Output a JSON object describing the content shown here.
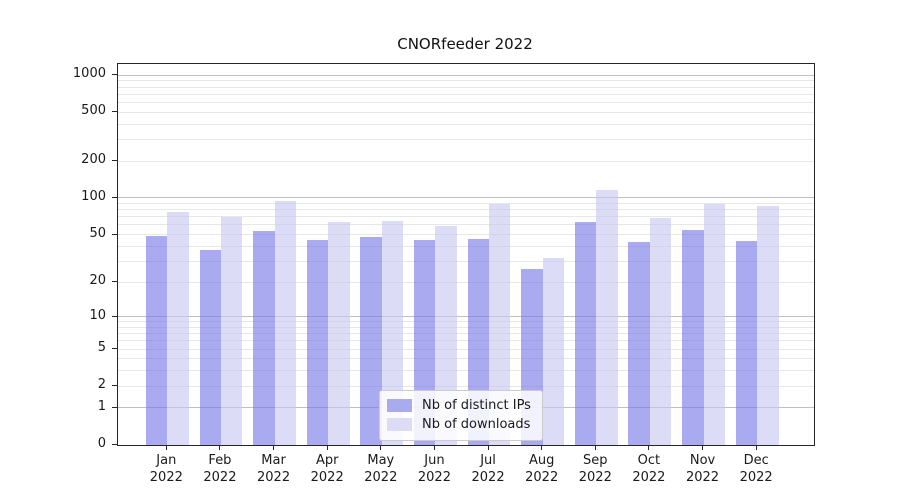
{
  "chart_data": {
    "type": "bar",
    "title": "CNORfeeder 2022",
    "categories": [
      "Jan",
      "Feb",
      "Mar",
      "Apr",
      "May",
      "Jun",
      "Jul",
      "Aug",
      "Sep",
      "Oct",
      "Nov",
      "Dec"
    ],
    "x_year_label": "2022",
    "series": [
      {
        "name": "Nb of distinct IPs",
        "swatch_color": "#aaaaee",
        "bar_color": "rgba(118,118,230,0.62)",
        "values": [
          49,
          37,
          54,
          45,
          48,
          45,
          46,
          26,
          64,
          43,
          55,
          44
        ]
      },
      {
        "name": "Nb of downloads",
        "swatch_color": "#dcdcf6",
        "bar_color": "rgba(199,199,241,0.62)",
        "values": [
          76,
          70,
          94,
          63,
          65,
          59,
          90,
          32,
          117,
          69,
          90,
          86
        ]
      }
    ],
    "yscale": "log1p",
    "ylim": [
      0,
      1233
    ],
    "ymax": 1233,
    "y_ticks": [
      0,
      1,
      2,
      5,
      10,
      20,
      50,
      100,
      200,
      500,
      1000
    ],
    "major_gridlines": [
      1,
      10,
      100,
      1000
    ],
    "minor_gridlines": [
      2,
      3,
      4,
      5,
      6,
      7,
      8,
      9,
      20,
      30,
      40,
      50,
      60,
      70,
      80,
      90,
      200,
      300,
      400,
      500,
      600,
      700,
      800,
      900
    ],
    "grid_colors": {
      "major": "#c0c0c0",
      "minor": "#e7e7e7"
    },
    "axis_color": "#262626",
    "grid": "on",
    "legend_position": "lower center"
  }
}
